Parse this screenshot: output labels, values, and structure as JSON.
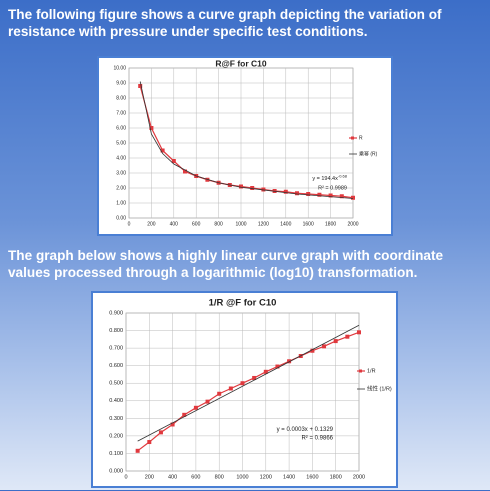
{
  "paragraphs": [
    "The following figure shows a curve graph depicting the variation of resistance with pressure under specific test conditions.",
    "The graph below shows a highly linear curve graph with coordinate values processed through a logarithmic (log10) transformation."
  ],
  "chart_data": [
    {
      "type": "line",
      "title": "R@F  for C10",
      "xlim": [
        0,
        2000
      ],
      "xticks": [
        0,
        200,
        400,
        600,
        800,
        1000,
        1200,
        1400,
        1600,
        1800,
        2000
      ],
      "ylim": [
        0,
        10
      ],
      "yticks": [
        {
          "value": 0,
          "label": "0.00"
        },
        {
          "value": 1,
          "label": "1.00"
        },
        {
          "value": 2,
          "label": "2.00"
        },
        {
          "value": 3,
          "label": "3.00"
        },
        {
          "value": 4,
          "label": "4.00"
        },
        {
          "value": 5,
          "label": "5.00"
        },
        {
          "value": 6,
          "label": "6.00"
        },
        {
          "value": 7,
          "label": "7.00"
        },
        {
          "value": 8,
          "label": "8.00"
        },
        {
          "value": 9,
          "label": "9.00"
        },
        {
          "value": 10,
          "label": "10.00"
        }
      ],
      "grid": true,
      "series": [
        {
          "name": "R",
          "color": "#e0393e",
          "marker": true,
          "x": [
            100,
            200,
            300,
            400,
            500,
            600,
            700,
            800,
            900,
            1000,
            1100,
            1200,
            1300,
            1400,
            1500,
            1600,
            1700,
            1800,
            1900,
            2000
          ],
          "values": [
            8.8,
            6.0,
            4.5,
            3.8,
            3.1,
            2.8,
            2.55,
            2.35,
            2.2,
            2.1,
            2.0,
            1.9,
            1.8,
            1.75,
            1.65,
            1.6,
            1.55,
            1.5,
            1.45,
            1.35
          ]
        },
        {
          "name": "乘幂 (R)",
          "color": "#333333",
          "marker": false,
          "x": [
            100,
            200,
            300,
            400,
            600,
            800,
            1000,
            1500,
            2000
          ],
          "values": [
            9.1,
            5.6,
            4.3,
            3.6,
            2.8,
            2.35,
            2.05,
            1.6,
            1.3
          ]
        }
      ],
      "equation": {
        "base": "y = 194.4x",
        "exponent": "-0.68"
      },
      "r_squared": "R² = 0.9989"
    },
    {
      "type": "line",
      "title": "1/R @F for C10",
      "xlim": [
        0,
        2000
      ],
      "xticks": [
        0,
        200,
        400,
        600,
        800,
        1000,
        1200,
        1400,
        1600,
        1800,
        2000
      ],
      "ylim": [
        0,
        0.9
      ],
      "yticks": [
        {
          "value": 0,
          "label": "0.000"
        },
        {
          "value": 0.1,
          "label": "0.100"
        },
        {
          "value": 0.2,
          "label": "0.200"
        },
        {
          "value": 0.3,
          "label": "0.300"
        },
        {
          "value": 0.4,
          "label": "0.400"
        },
        {
          "value": 0.5,
          "label": "0.500"
        },
        {
          "value": 0.6,
          "label": "0.600"
        },
        {
          "value": 0.7,
          "label": "0.700"
        },
        {
          "value": 0.8,
          "label": "0.800"
        },
        {
          "value": 0.9,
          "label": "0.900"
        }
      ],
      "grid": true,
      "series": [
        {
          "name": "1/R",
          "color": "#e0393e",
          "marker": true,
          "x": [
            100,
            200,
            300,
            400,
            500,
            600,
            700,
            800,
            900,
            1000,
            1100,
            1200,
            1300,
            1400,
            1500,
            1600,
            1700,
            1800,
            1900,
            2000
          ],
          "values": [
            0.115,
            0.165,
            0.22,
            0.265,
            0.32,
            0.36,
            0.395,
            0.44,
            0.47,
            0.5,
            0.53,
            0.565,
            0.595,
            0.625,
            0.655,
            0.685,
            0.71,
            0.74,
            0.765,
            0.79
          ]
        },
        {
          "name": "线性 (1/R)",
          "color": "#333333",
          "marker": false,
          "x": [
            100,
            2000
          ],
          "values": [
            0.17,
            0.83
          ]
        }
      ],
      "equation": {
        "base": "y = 0.0003x + 0.1329"
      },
      "r_squared": "R² = 0.9866"
    }
  ]
}
